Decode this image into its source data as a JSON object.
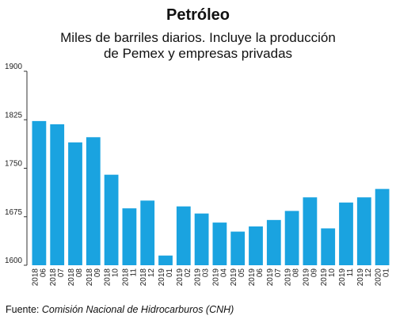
{
  "header": {
    "title": "Petróleo",
    "subtitle_line1": "Miles de barriles diarios. Incluye la producción",
    "subtitle_line2": "de Pemex y empresas privadas"
  },
  "source": {
    "label": "Fuente:",
    "text": "Comisión Nacional de Hidrocarburos (CNH)"
  },
  "chart_data": {
    "type": "bar",
    "title": "Petróleo",
    "subtitle": "Miles de barriles diarios. Incluye la producción de Pemex y empresas privadas",
    "xlabel": "",
    "ylabel": "",
    "ylim": [
      1600,
      1900
    ],
    "yticks": [
      1600,
      1675,
      1750,
      1825,
      1900
    ],
    "grid": false,
    "bar_color": "#1aa3e0",
    "categories": [
      [
        "2018",
        "06"
      ],
      [
        "2018",
        "07"
      ],
      [
        "2018",
        "08"
      ],
      [
        "2018",
        "09"
      ],
      [
        "2018",
        "10"
      ],
      [
        "2018",
        "11"
      ],
      [
        "2018",
        "12"
      ],
      [
        "2019",
        "01"
      ],
      [
        "2019",
        "02"
      ],
      [
        "2019",
        "03"
      ],
      [
        "2019",
        "04"
      ],
      [
        "2019",
        "05"
      ],
      [
        "2019",
        "06"
      ],
      [
        "2019",
        "07"
      ],
      [
        "2019",
        "08"
      ],
      [
        "2019",
        "09"
      ],
      [
        "2019",
        "10"
      ],
      [
        "2019",
        "11"
      ],
      [
        "2019",
        "12"
      ],
      [
        "2020",
        "01"
      ]
    ],
    "values": [
      1823,
      1818,
      1790,
      1798,
      1740,
      1688,
      1700,
      1615,
      1691,
      1680,
      1666,
      1652,
      1660,
      1670,
      1684,
      1705,
      1657,
      1697,
      1705,
      1718
    ]
  }
}
